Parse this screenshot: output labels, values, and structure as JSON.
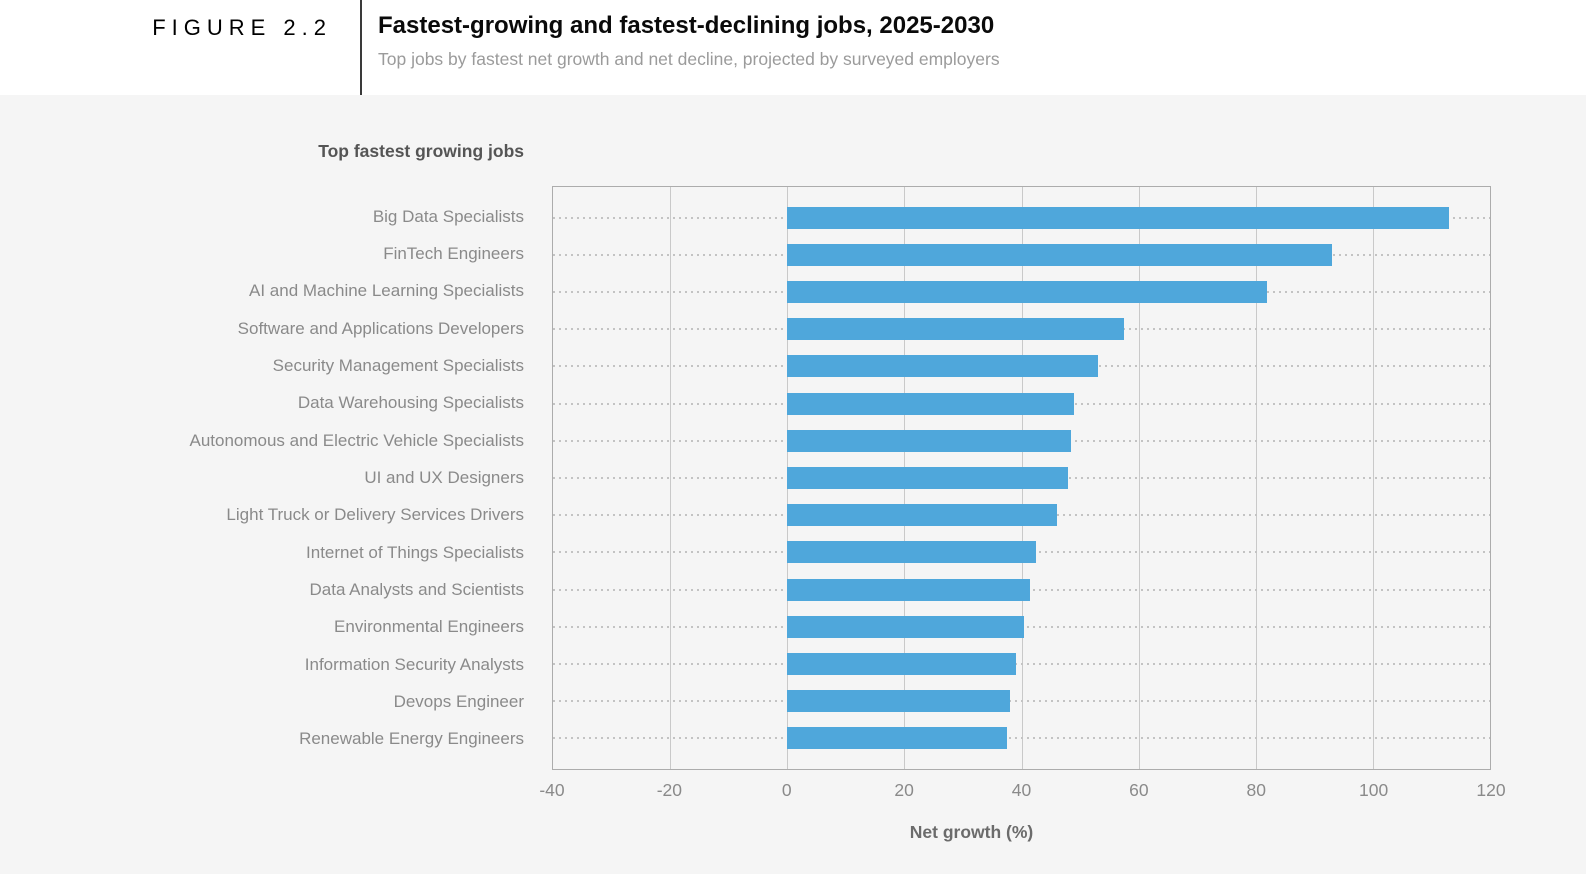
{
  "figure": {
    "label": "FIGURE 2.2",
    "title": "Fastest-growing and fastest-declining jobs, 2025-2030",
    "subtitle": "Top jobs by fastest net growth and net decline, projected by surveyed employers"
  },
  "section_title": "Top fastest growing jobs",
  "chart_data": {
    "type": "bar",
    "orientation": "horizontal",
    "title": "Top fastest growing jobs",
    "xlabel": "Net growth (%)",
    "xlim": [
      -40,
      120
    ],
    "xticks": [
      -40,
      -20,
      0,
      20,
      40,
      60,
      80,
      100,
      120
    ],
    "grid": true,
    "legend": false,
    "categories": [
      "Big Data Specialists",
      "FinTech Engineers",
      "AI and Machine Learning Specialists",
      "Software and Applications Developers",
      "Security Management Specialists",
      "Data Warehousing Specialists",
      "Autonomous and Electric Vehicle Specialists",
      "UI and UX Designers",
      "Light Truck or Delivery Services Drivers",
      "Internet of Things Specialists",
      "Data Analysts and Scientists",
      "Environmental Engineers",
      "Information Security Analysts",
      "Devops Engineer",
      "Renewable Energy Engineers"
    ],
    "values": [
      113,
      93,
      82,
      57.5,
      53,
      49,
      48.5,
      48,
      46,
      42.5,
      41.5,
      40.5,
      39,
      38,
      37.5
    ]
  },
  "colors": {
    "bar": "#4FA7DB",
    "page_bg": "#f5f5f5",
    "header_bg": "#ffffff",
    "plot_border": "#acacac",
    "gridline": "#c9c9c9",
    "dotted": "#c3c3c3",
    "label_text": "#8a8a8a",
    "tick_text": "#8a8a8a",
    "section_title_text": "#555555",
    "axis_title_text": "#6b6b6b",
    "figure_label_text": "#000000",
    "title_text": "#0a0a0a",
    "subtitle_text": "#9b9b9b",
    "divider": "#3a3a3a"
  }
}
